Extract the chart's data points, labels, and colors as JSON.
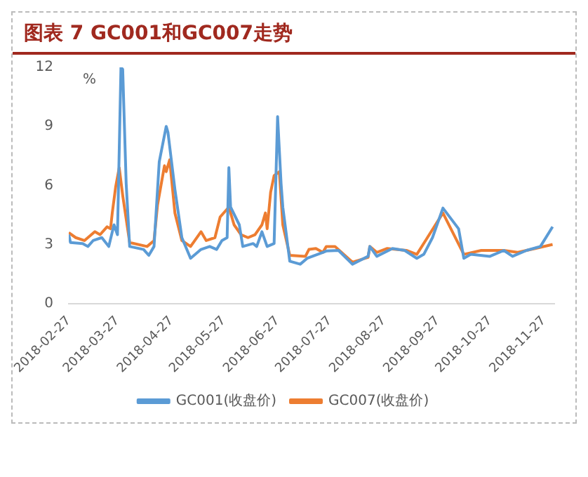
{
  "chart_data": {
    "type": "line",
    "title": "图表 7  GC001和GC007走势",
    "ylabel": "%",
    "xlim": [
      "2018-02-27",
      "2018-12-03"
    ],
    "xticks": [
      "2018-02-27",
      "2018-03-27",
      "2018-04-27",
      "2018-05-27",
      "2018-06-27",
      "2018-07-27",
      "2018-08-27",
      "2018-09-27",
      "2018-10-27",
      "2018-11-27"
    ],
    "ylim": [
      0,
      12
    ],
    "yticks": [
      0,
      3,
      6,
      9,
      12
    ],
    "grid": false,
    "legend": "bottom",
    "marker": "none",
    "line_style": "solid",
    "series": [
      {
        "name": "GC001(收盘价)",
        "color": "#5b9bd5",
        "x": [
          "2018-02-27",
          "2018-02-28",
          "2018-03-07",
          "2018-03-10",
          "2018-03-13",
          "2018-03-18",
          "2018-03-22",
          "2018-03-25",
          "2018-03-27",
          "2018-03-29",
          "2018-03-30",
          "2018-04-01",
          "2018-04-03",
          "2018-04-11",
          "2018-04-14",
          "2018-04-17",
          "2018-04-20",
          "2018-04-24",
          "2018-04-25",
          "2018-04-29",
          "2018-05-03",
          "2018-05-08",
          "2018-05-14",
          "2018-05-19",
          "2018-05-23",
          "2018-05-26",
          "2018-05-29",
          "2018-05-30",
          "2018-05-31",
          "2018-06-05",
          "2018-06-07",
          "2018-06-13",
          "2018-06-15",
          "2018-06-18",
          "2018-06-21",
          "2018-06-25",
          "2018-06-27",
          "2018-06-29",
          "2018-06-30",
          "2018-07-04",
          "2018-07-10",
          "2018-07-14",
          "2018-07-23",
          "2018-07-25",
          "2018-08-01",
          "2018-08-09",
          "2018-08-18",
          "2018-08-19",
          "2018-08-23",
          "2018-09-01",
          "2018-09-08",
          "2018-09-15",
          "2018-09-19",
          "2018-09-24",
          "2018-09-30",
          "2018-10-09",
          "2018-10-12",
          "2018-10-16",
          "2018-10-27",
          "2018-11-04",
          "2018-11-09",
          "2018-11-17",
          "2018-11-25",
          "2018-12-02"
        ],
        "values": [
          3.5,
          3.1,
          3.05,
          2.9,
          3.2,
          3.35,
          2.9,
          4.0,
          3.5,
          12.0,
          11.9,
          6.1,
          2.9,
          2.75,
          2.45,
          2.9,
          7.2,
          9.0,
          8.7,
          5.8,
          3.35,
          2.3,
          2.75,
          2.9,
          2.75,
          3.2,
          3.35,
          6.9,
          4.9,
          4.0,
          2.9,
          3.05,
          2.9,
          3.65,
          2.9,
          3.05,
          9.5,
          6.1,
          4.9,
          2.15,
          2.0,
          2.3,
          2.6,
          2.67,
          2.7,
          2.0,
          2.4,
          2.9,
          2.4,
          2.8,
          2.7,
          2.3,
          2.5,
          3.35,
          4.85,
          3.8,
          2.3,
          2.5,
          2.4,
          2.7,
          2.4,
          2.7,
          2.9,
          3.9
        ]
      },
      {
        "name": "GC007(收盘价)",
        "color": "#ed7d31",
        "x": [
          "2018-02-27",
          "2018-03-03",
          "2018-03-08",
          "2018-03-14",
          "2018-03-17",
          "2018-03-21",
          "2018-03-23",
          "2018-03-24",
          "2018-03-26",
          "2018-03-28",
          "2018-03-30",
          "2018-04-03",
          "2018-04-13",
          "2018-04-17",
          "2018-04-19",
          "2018-04-23",
          "2018-04-24",
          "2018-04-26",
          "2018-04-29",
          "2018-05-03",
          "2018-05-08",
          "2018-05-14",
          "2018-05-17",
          "2018-05-22",
          "2018-05-25",
          "2018-05-30",
          "2018-06-02",
          "2018-06-06",
          "2018-06-10",
          "2018-06-14",
          "2018-06-18",
          "2018-06-20",
          "2018-06-21",
          "2018-06-23",
          "2018-06-25",
          "2018-06-28",
          "2018-06-30",
          "2018-07-04",
          "2018-07-13",
          "2018-07-15",
          "2018-07-19",
          "2018-07-23",
          "2018-07-25",
          "2018-07-30",
          "2018-08-09",
          "2018-08-18",
          "2018-08-19",
          "2018-08-23",
          "2018-08-29",
          "2018-09-09",
          "2018-09-15",
          "2018-09-20",
          "2018-09-30",
          "2018-10-12",
          "2018-10-22",
          "2018-11-04",
          "2018-11-12",
          "2018-11-22",
          "2018-12-02"
        ],
        "values": [
          3.6,
          3.35,
          3.2,
          3.65,
          3.5,
          3.9,
          3.8,
          4.6,
          5.95,
          6.9,
          5.5,
          3.1,
          2.9,
          3.2,
          5.0,
          7.0,
          6.7,
          7.3,
          4.6,
          3.2,
          2.9,
          3.65,
          3.2,
          3.35,
          4.4,
          4.9,
          4.0,
          3.5,
          3.35,
          3.5,
          4.0,
          4.6,
          3.8,
          5.65,
          6.5,
          6.7,
          4.0,
          2.45,
          2.4,
          2.75,
          2.8,
          2.6,
          2.9,
          2.9,
          2.1,
          2.35,
          2.9,
          2.6,
          2.8,
          2.7,
          2.5,
          3.2,
          4.6,
          2.5,
          2.7,
          2.7,
          2.6,
          2.8,
          3.0
        ]
      }
    ]
  }
}
